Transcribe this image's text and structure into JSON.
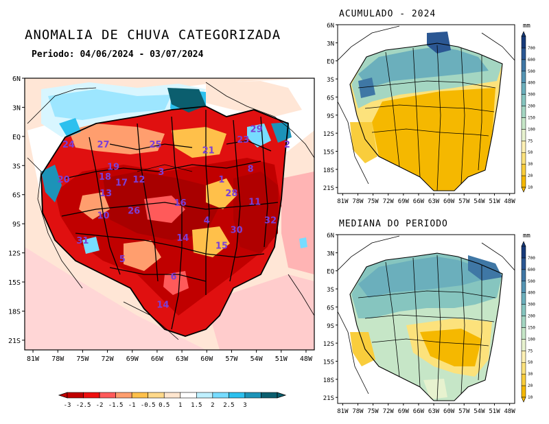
{
  "main_map": {
    "title": "ANOMALIA DE CHUVA CATEGORIZADA",
    "period": "Periodo: 04/06/2024 - 03/07/2024",
    "lat_ticks": [
      "6N",
      "3N",
      "EQ",
      "3S",
      "6S",
      "9S",
      "12S",
      "15S",
      "18S",
      "21S"
    ],
    "lon_ticks": [
      "81W",
      "78W",
      "75W",
      "72W",
      "69W",
      "66W",
      "63W",
      "60W",
      "57W",
      "54W",
      "51W",
      "48W"
    ],
    "basin_labels": [
      {
        "text": "24",
        "lon": -76.7,
        "lat": -0.8
      },
      {
        "text": "27",
        "lon": -72.5,
        "lat": -0.8
      },
      {
        "text": "25",
        "lon": -66.2,
        "lat": -0.8
      },
      {
        "text": "21",
        "lon": -59.8,
        "lat": -1.4
      },
      {
        "text": "23",
        "lon": -55.6,
        "lat": -0.3
      },
      {
        "text": "29",
        "lon": -54.0,
        "lat": 0.8
      },
      {
        "text": "2",
        "lon": -50.3,
        "lat": -0.8
      },
      {
        "text": "19",
        "lon": -71.3,
        "lat": -3.1
      },
      {
        "text": "3",
        "lon": -65.5,
        "lat": -3.6
      },
      {
        "text": "18",
        "lon": -72.3,
        "lat": -4.1
      },
      {
        "text": "17",
        "lon": -70.3,
        "lat": -4.7
      },
      {
        "text": "12",
        "lon": -68.2,
        "lat": -4.4
      },
      {
        "text": "8",
        "lon": -54.7,
        "lat": -3.3
      },
      {
        "text": "20",
        "lon": -77.3,
        "lat": -4.4
      },
      {
        "text": "1",
        "lon": -58.2,
        "lat": -4.4
      },
      {
        "text": "13",
        "lon": -72.2,
        "lat": -5.8
      },
      {
        "text": "28",
        "lon": -57.0,
        "lat": -5.8
      },
      {
        "text": "16",
        "lon": -63.2,
        "lat": -6.8
      },
      {
        "text": "11",
        "lon": -54.2,
        "lat": -6.7
      },
      {
        "text": "26",
        "lon": -68.8,
        "lat": -7.6
      },
      {
        "text": "10",
        "lon": -72.5,
        "lat": -8.1
      },
      {
        "text": "4",
        "lon": -60.0,
        "lat": -8.6
      },
      {
        "text": "32",
        "lon": -52.3,
        "lat": -8.6
      },
      {
        "text": "30",
        "lon": -56.4,
        "lat": -9.6
      },
      {
        "text": "14",
        "lon": -62.9,
        "lat": -10.4
      },
      {
        "text": "31",
        "lon": -75.0,
        "lat": -10.7
      },
      {
        "text": "15",
        "lon": -58.2,
        "lat": -11.2
      },
      {
        "text": "5",
        "lon": -70.2,
        "lat": -12.6
      },
      {
        "text": "6",
        "lon": -64.0,
        "lat": -14.4
      },
      {
        "text": "14",
        "lon": -65.3,
        "lat": -17.3
      }
    ]
  },
  "anomaly_legend": {
    "labels": [
      "-3",
      "-2.5",
      "-2",
      "-1.5",
      "-1",
      "-0.5",
      "0.5",
      "1",
      "1.5",
      "2",
      "2.5",
      "3"
    ],
    "colors": [
      "#c00000",
      "#ee1010",
      "#ff5a5a",
      "#ff9e6e",
      "#ffc04a",
      "#ffd98a",
      "#ffe6cf",
      "#ffffff",
      "#bff0ff",
      "#77dcff",
      "#2cc0ee",
      "#1c93b8",
      "#0b5e6e"
    ]
  },
  "accum_map": {
    "title": "ACUMULADO - 2024",
    "units": "mm"
  },
  "median_map": {
    "title": "MEDIANA DO PERIODO",
    "units": "mm"
  },
  "small_map_ticks": {
    "lat_ticks": [
      "6N",
      "3N",
      "EQ",
      "3S",
      "6S",
      "9S",
      "12S",
      "15S",
      "18S",
      "21S"
    ],
    "lon_ticks": [
      "81W",
      "78W",
      "75W",
      "72W",
      "69W",
      "66W",
      "63W",
      "60W",
      "57W",
      "54W",
      "51W",
      "48W"
    ]
  },
  "mm_scale": {
    "labels": [
      "10",
      "20",
      "30",
      "50",
      "75",
      "100",
      "150",
      "200",
      "300",
      "400",
      "500",
      "600",
      "700"
    ],
    "colors": [
      "#f5b800",
      "#f9cd3c",
      "#fce27c",
      "#fdf0b4",
      "#e7f2cf",
      "#c6e6c7",
      "#a4d6c2",
      "#86c5bf",
      "#6bafbc",
      "#5494b3",
      "#3f77a5",
      "#2b5793",
      "#173a7a"
    ]
  }
}
